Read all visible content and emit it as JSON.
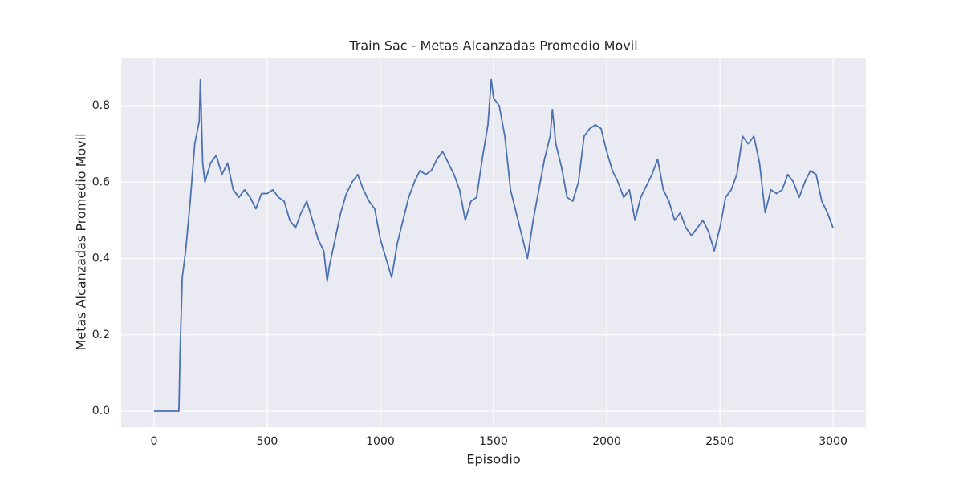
{
  "chart_data": {
    "type": "line",
    "title": "Train Sac - Metas Alcanzadas Promedio Movil",
    "x_label": "Episodio",
    "y_label": "Metas Alcanzadas Promedio Movil",
    "x": [
      0,
      105,
      110,
      115,
      125,
      140,
      160,
      180,
      200,
      205,
      215,
      225,
      250,
      275,
      300,
      325,
      350,
      375,
      400,
      425,
      450,
      475,
      500,
      525,
      550,
      575,
      600,
      625,
      650,
      675,
      700,
      725,
      750,
      765,
      775,
      800,
      825,
      850,
      875,
      900,
      925,
      950,
      975,
      1000,
      1025,
      1050,
      1075,
      1100,
      1125,
      1150,
      1175,
      1200,
      1225,
      1250,
      1275,
      1300,
      1325,
      1350,
      1375,
      1400,
      1425,
      1450,
      1475,
      1490,
      1500,
      1525,
      1550,
      1575,
      1600,
      1625,
      1650,
      1675,
      1700,
      1725,
      1750,
      1760,
      1775,
      1800,
      1825,
      1850,
      1875,
      1900,
      1925,
      1950,
      1975,
      2000,
      2025,
      2050,
      2075,
      2100,
      2125,
      2150,
      2175,
      2200,
      2225,
      2250,
      2275,
      2300,
      2325,
      2350,
      2375,
      2400,
      2425,
      2450,
      2475,
      2500,
      2525,
      2550,
      2575,
      2600,
      2625,
      2650,
      2675,
      2700,
      2725,
      2750,
      2775,
      2800,
      2825,
      2850,
      2875,
      2900,
      2925,
      2950,
      2975,
      3000
    ],
    "series": [
      {
        "name": "Metas Alcanzadas Promedio Movil",
        "color": "#4c72b0",
        "values": [
          0,
          0,
          0.0,
          0.15,
          0.35,
          0.42,
          0.55,
          0.7,
          0.76,
          0.87,
          0.65,
          0.6,
          0.65,
          0.67,
          0.62,
          0.65,
          0.58,
          0.56,
          0.58,
          0.56,
          0.53,
          0.57,
          0.57,
          0.58,
          0.56,
          0.55,
          0.5,
          0.48,
          0.52,
          0.55,
          0.5,
          0.45,
          0.42,
          0.34,
          0.38,
          0.45,
          0.52,
          0.57,
          0.6,
          0.62,
          0.58,
          0.55,
          0.53,
          0.45,
          0.4,
          0.35,
          0.44,
          0.5,
          0.56,
          0.6,
          0.63,
          0.62,
          0.63,
          0.66,
          0.68,
          0.65,
          0.62,
          0.58,
          0.5,
          0.55,
          0.56,
          0.66,
          0.75,
          0.87,
          0.82,
          0.8,
          0.72,
          0.58,
          0.52,
          0.46,
          0.4,
          0.5,
          0.58,
          0.66,
          0.72,
          0.79,
          0.7,
          0.64,
          0.56,
          0.55,
          0.6,
          0.72,
          0.74,
          0.75,
          0.74,
          0.68,
          0.63,
          0.6,
          0.56,
          0.58,
          0.5,
          0.56,
          0.59,
          0.62,
          0.66,
          0.58,
          0.55,
          0.5,
          0.52,
          0.48,
          0.46,
          0.48,
          0.5,
          0.47,
          0.42,
          0.48,
          0.56,
          0.58,
          0.62,
          0.72,
          0.7,
          0.72,
          0.65,
          0.52,
          0.58,
          0.57,
          0.58,
          0.62,
          0.6,
          0.56,
          0.6,
          0.63,
          0.62,
          0.55,
          0.52,
          0.48
        ]
      }
    ],
    "xlim": [
      -145,
      3145
    ],
    "ylim": [
      -0.042,
      0.926
    ],
    "xticks": [
      0,
      500,
      1000,
      1500,
      2000,
      2500,
      3000
    ],
    "yticks": [
      {
        "value": 0,
        "label": "0.0"
      },
      0.2,
      0.4,
      0.6,
      0.8
    ],
    "grid": true
  }
}
